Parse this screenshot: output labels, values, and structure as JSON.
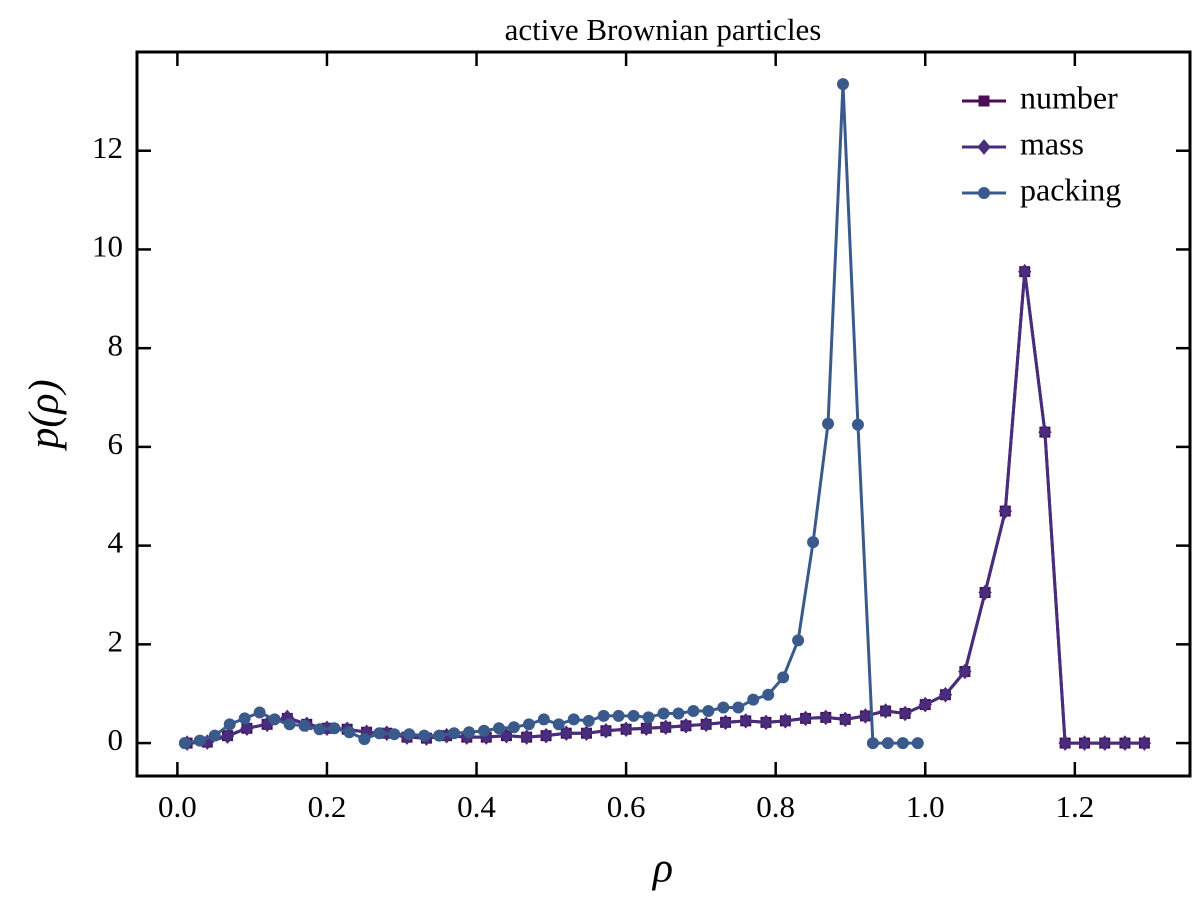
{
  "chart_data": {
    "type": "line",
    "title": "active Brownian particles",
    "xlabel": "ρ",
    "ylabel": "p(ρ)",
    "xlim": [
      -0.054,
      1.354
    ],
    "ylim": [
      -0.667,
      14.0
    ],
    "xticks": [
      {
        "value": 0,
        "label": "0.0"
      },
      {
        "value": 0.2,
        "label": "0.2"
      },
      {
        "value": 0.4,
        "label": "0.4"
      },
      {
        "value": 0.6,
        "label": "0.6"
      },
      {
        "value": 0.8,
        "label": "0.8"
      },
      {
        "value": 1.0,
        "label": "1.0"
      },
      {
        "value": 1.2,
        "label": "1.2"
      }
    ],
    "yticks": [
      0,
      2,
      4,
      6,
      8,
      10,
      12
    ],
    "legend": "upper right",
    "series": [
      {
        "name": "number",
        "color": "#4b0c55",
        "marker": "square",
        "x": [
          0.013,
          0.04,
          0.067,
          0.093,
          0.12,
          0.147,
          0.173,
          0.2,
          0.227,
          0.253,
          0.28,
          0.307,
          0.333,
          0.36,
          0.387,
          0.413,
          0.44,
          0.467,
          0.493,
          0.52,
          0.547,
          0.573,
          0.6,
          0.627,
          0.653,
          0.68,
          0.707,
          0.733,
          0.76,
          0.787,
          0.813,
          0.84,
          0.867,
          0.893,
          0.92,
          0.947,
          0.973,
          1.0,
          1.027,
          1.053,
          1.08,
          1.107,
          1.133,
          1.16,
          1.187,
          1.213,
          1.24,
          1.267,
          1.293
        ],
        "values": [
          0,
          0.02,
          0.15,
          0.3,
          0.38,
          0.5,
          0.38,
          0.3,
          0.28,
          0.22,
          0.2,
          0.12,
          0.1,
          0.15,
          0.12,
          0.12,
          0.15,
          0.12,
          0.15,
          0.2,
          0.2,
          0.25,
          0.28,
          0.3,
          0.32,
          0.35,
          0.38,
          0.42,
          0.45,
          0.42,
          0.45,
          0.5,
          0.52,
          0.48,
          0.55,
          0.65,
          0.6,
          0.78,
          0.98,
          1.45,
          3.05,
          4.7,
          9.55,
          6.3,
          0,
          0,
          0,
          0,
          0
        ]
      },
      {
        "name": "mass",
        "color": "#472d7b",
        "marker": "diamond",
        "x": [
          0.013,
          0.04,
          0.067,
          0.093,
          0.12,
          0.147,
          0.173,
          0.2,
          0.227,
          0.253,
          0.28,
          0.307,
          0.333,
          0.36,
          0.387,
          0.413,
          0.44,
          0.467,
          0.493,
          0.52,
          0.547,
          0.573,
          0.6,
          0.627,
          0.653,
          0.68,
          0.707,
          0.733,
          0.76,
          0.787,
          0.813,
          0.84,
          0.867,
          0.893,
          0.92,
          0.947,
          0.973,
          1.0,
          1.027,
          1.053,
          1.08,
          1.107,
          1.133,
          1.16,
          1.187,
          1.213,
          1.24,
          1.267,
          1.293
        ],
        "values": [
          0,
          0.02,
          0.14,
          0.3,
          0.38,
          0.52,
          0.38,
          0.3,
          0.28,
          0.22,
          0.2,
          0.12,
          0.1,
          0.15,
          0.12,
          0.12,
          0.15,
          0.12,
          0.15,
          0.2,
          0.2,
          0.25,
          0.28,
          0.3,
          0.32,
          0.35,
          0.38,
          0.42,
          0.45,
          0.42,
          0.45,
          0.5,
          0.52,
          0.48,
          0.55,
          0.65,
          0.6,
          0.78,
          0.98,
          1.45,
          3.05,
          4.7,
          9.55,
          6.3,
          0,
          0,
          0,
          0,
          0
        ]
      },
      {
        "name": "packing",
        "color": "#3b5a8c",
        "marker": "circle",
        "x": [
          0.01,
          0.03,
          0.05,
          0.07,
          0.09,
          0.11,
          0.13,
          0.15,
          0.17,
          0.19,
          0.21,
          0.23,
          0.25,
          0.27,
          0.29,
          0.31,
          0.33,
          0.35,
          0.37,
          0.39,
          0.41,
          0.43,
          0.45,
          0.47,
          0.49,
          0.51,
          0.53,
          0.55,
          0.57,
          0.59,
          0.61,
          0.63,
          0.65,
          0.67,
          0.69,
          0.71,
          0.73,
          0.75,
          0.77,
          0.79,
          0.81,
          0.83,
          0.85,
          0.87,
          0.89,
          0.91,
          0.93,
          0.95,
          0.97,
          0.99
        ],
        "values": [
          0,
          0.05,
          0.15,
          0.38,
          0.5,
          0.62,
          0.48,
          0.38,
          0.35,
          0.28,
          0.3,
          0.22,
          0.08,
          0.2,
          0.18,
          0.18,
          0.15,
          0.15,
          0.2,
          0.22,
          0.25,
          0.3,
          0.32,
          0.38,
          0.48,
          0.38,
          0.48,
          0.45,
          0.55,
          0.55,
          0.55,
          0.52,
          0.6,
          0.6,
          0.65,
          0.65,
          0.72,
          0.72,
          0.88,
          0.98,
          1.33,
          2.08,
          4.07,
          6.47,
          13.35,
          6.45,
          0,
          0,
          0,
          0
        ]
      }
    ]
  }
}
